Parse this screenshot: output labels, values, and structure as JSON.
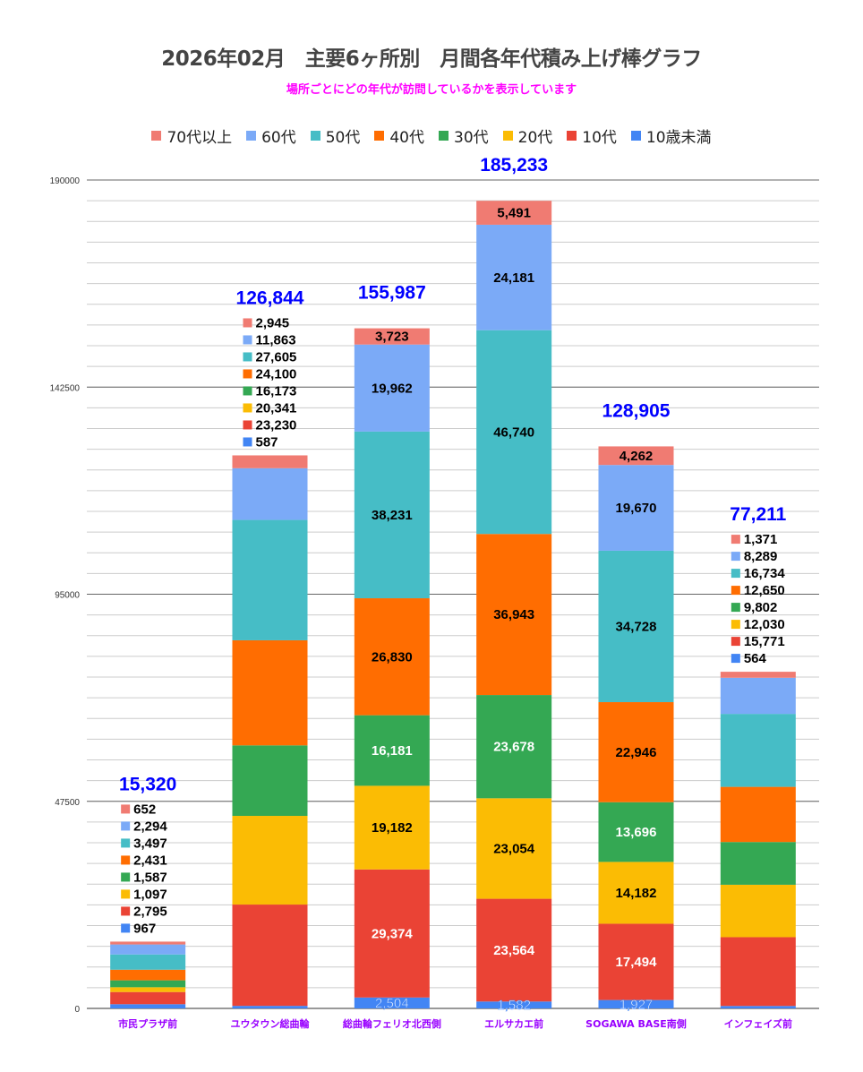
{
  "chart_data": {
    "type": "stacked-bar",
    "title": "2026年02月　主要6ヶ所別　月間各年代積み上げ棒グラフ",
    "subtitle": "場所ごとにどの年代が訪問しているかを表示しています",
    "categories": [
      "市民プラザ前",
      "ユウタウン総曲輪",
      "総曲輪フェリオ北西側",
      "エルサカエ前",
      "SOGAWA BASE南側",
      "インフェイズ前"
    ],
    "series": [
      {
        "name": "10歳未満",
        "color": "#4285f4",
        "values": [
          967,
          587,
          2504,
          1582,
          1927,
          564
        ]
      },
      {
        "name": "10代",
        "color": "#ea4335",
        "values": [
          2795,
          23230,
          29374,
          23564,
          17494,
          15771
        ]
      },
      {
        "name": "20代",
        "color": "#fbbc04",
        "values": [
          1097,
          20341,
          19182,
          23054,
          14182,
          12030
        ]
      },
      {
        "name": "30代",
        "color": "#34a853",
        "values": [
          1587,
          16173,
          16181,
          23678,
          13696,
          9802
        ]
      },
      {
        "name": "40代",
        "color": "#ff6d01",
        "values": [
          2431,
          24100,
          26830,
          36943,
          22946,
          12650
        ]
      },
      {
        "name": "50代",
        "color": "#46bdc6",
        "values": [
          3497,
          27605,
          38231,
          46740,
          34728,
          16734
        ]
      },
      {
        "name": "60代",
        "color": "#7baaf7",
        "values": [
          2294,
          11863,
          19962,
          24181,
          19670,
          8289
        ]
      },
      {
        "name": "70代以上",
        "color": "#f07b72",
        "values": [
          652,
          2945,
          3723,
          5491,
          4262,
          1371
        ]
      }
    ],
    "totals": [
      "15,320",
      "126,844",
      "155,987",
      "185,233",
      "128,905",
      "77,211"
    ],
    "legend_order": [
      "70代以上",
      "60代",
      "50代",
      "40代",
      "30代",
      "20代",
      "10代",
      "10歳未満"
    ],
    "yticks": [
      "0",
      "47500",
      "95000",
      "142500",
      "190000"
    ],
    "ylim": [
      0,
      190000
    ],
    "minor_grid_step": 4750,
    "grid": true,
    "legend_position": "top",
    "total_label_color": "#0000ff",
    "category_label_color": "#9900ff"
  }
}
